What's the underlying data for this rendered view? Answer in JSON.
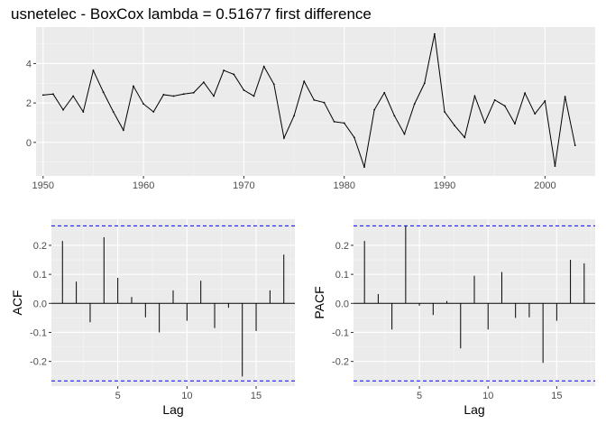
{
  "title": "usnetelec - BoxCox lambda =  0.51677 first difference",
  "chart_data": [
    {
      "type": "line",
      "xlabel": "",
      "ylabel": "",
      "x": [
        1950,
        1951,
        1952,
        1953,
        1954,
        1955,
        1956,
        1957,
        1958,
        1959,
        1960,
        1961,
        1962,
        1963,
        1964,
        1965,
        1966,
        1967,
        1968,
        1969,
        1970,
        1971,
        1972,
        1973,
        1974,
        1975,
        1976,
        1977,
        1978,
        1979,
        1980,
        1981,
        1982,
        1983,
        1984,
        1985,
        1986,
        1987,
        1988,
        1989,
        1990,
        1991,
        1992,
        1993,
        1994,
        1995,
        1996,
        1997,
        1998,
        1999,
        2000,
        2001,
        2002,
        2003
      ],
      "values": [
        2.4,
        2.45,
        1.65,
        2.35,
        1.55,
        3.65,
        2.55,
        1.55,
        0.62,
        2.85,
        1.95,
        1.55,
        2.42,
        2.35,
        2.45,
        2.52,
        3.05,
        2.35,
        3.65,
        3.45,
        2.65,
        2.35,
        3.85,
        2.95,
        0.22,
        1.35,
        3.1,
        2.15,
        2.02,
        1.05,
        0.98,
        0.25,
        -1.25,
        1.65,
        2.52,
        1.35,
        0.42,
        1.95,
        3.0,
        5.5,
        1.55,
        0.85,
        0.25,
        2.35,
        1.0,
        2.15,
        1.85,
        0.95,
        2.5,
        1.45,
        2.1,
        -1.2,
        2.32,
        -0.15
      ],
      "xticks": [
        "1950",
        "1960",
        "1970",
        "1980",
        "1990",
        "2000"
      ],
      "yticks": [
        "0",
        "2",
        "4"
      ],
      "xlim": [
        1949.3,
        2005.0
      ],
      "ylim": [
        -1.7,
        5.85
      ]
    },
    {
      "type": "bar",
      "xlabel": "Lag",
      "ylabel": "ACF",
      "lags": [
        1,
        2,
        3,
        4,
        5,
        6,
        7,
        8,
        9,
        10,
        11,
        12,
        13,
        14,
        15,
        16,
        17
      ],
      "values": [
        0.215,
        0.075,
        -0.065,
        0.228,
        0.088,
        0.022,
        -0.048,
        -0.1,
        0.045,
        -0.06,
        0.078,
        -0.085,
        -0.015,
        -0.252,
        -0.095,
        0.045,
        0.168
      ],
      "ci": 0.267,
      "xticks": [
        "5",
        "10",
        "15"
      ],
      "yticks": [
        "-0.2",
        "-0.1",
        "0.0",
        "0.1",
        "0.2"
      ],
      "xlim": [
        0.2,
        17.8
      ],
      "ylim": [
        -0.285,
        0.29
      ]
    },
    {
      "type": "bar",
      "xlabel": "Lag",
      "ylabel": "PACF",
      "lags": [
        1,
        2,
        3,
        4,
        5,
        6,
        7,
        8,
        9,
        10,
        11,
        12,
        13,
        14,
        15,
        16,
        17
      ],
      "values": [
        0.215,
        0.032,
        -0.09,
        0.268,
        -0.008,
        -0.04,
        0.008,
        -0.155,
        0.095,
        -0.09,
        0.108,
        -0.05,
        -0.048,
        -0.205,
        -0.06,
        0.15,
        0.138
      ],
      "ci": 0.267,
      "xticks": [
        "5",
        "10",
        "15"
      ],
      "yticks": [
        "-0.2",
        "-0.1",
        "0.0",
        "0.1",
        "0.2"
      ],
      "xlim": [
        0.2,
        17.8
      ],
      "ylim": [
        -0.285,
        0.29
      ]
    }
  ],
  "colors": {
    "panel_bg": "#ebebeb",
    "grid_major": "#ffffff",
    "grid_minor": "#f5f5f5",
    "line": "#000000",
    "ci_line": "#0000ff",
    "tick_text": "#4d4d4d"
  }
}
